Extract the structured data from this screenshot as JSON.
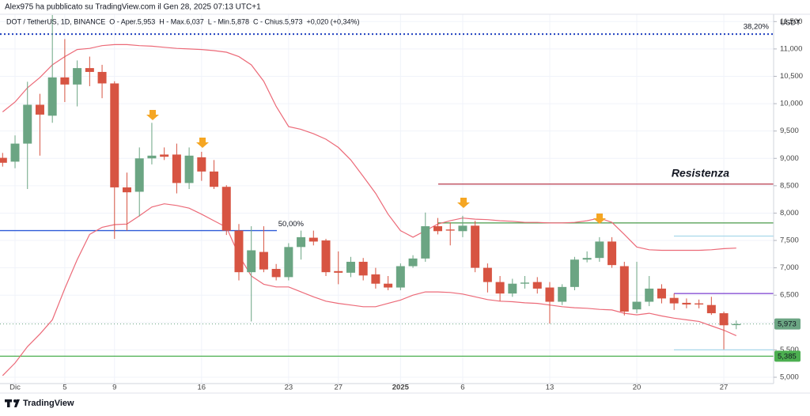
{
  "header": {
    "author_line": "Alex975 ha pubblicato su TradingView.com il Gen 28, 2025 07:13 UTC+1",
    "legend_line": "DOT / TetherUS, 1D, BINANCE  O - Aper.5,953  H - Max.6,037  L - Min.5,878  C - Chius.5,973  +0,020 (+0,34%)"
  },
  "footer": {
    "brand": "TradingView"
  },
  "chart_data": {
    "type": "candlestick",
    "y_axis_unit": "USDT",
    "categories": [
      null,
      "Dic",
      null,
      null,
      null,
      "5",
      null,
      null,
      null,
      "9",
      null,
      null,
      null,
      null,
      null,
      null,
      "16",
      null,
      null,
      null,
      null,
      null,
      null,
      "23",
      null,
      null,
      null,
      "27",
      null,
      null,
      null,
      null,
      "2025",
      null,
      null,
      null,
      null,
      "6",
      null,
      null,
      null,
      null,
      null,
      null,
      "13",
      null,
      null,
      null,
      null,
      null,
      null,
      "20",
      null,
      null,
      null,
      null,
      null,
      null,
      "27",
      null
    ],
    "up_color": "#6ba583",
    "down_color": "#d75442",
    "open": [
      9010,
      8940,
      9270,
      9980,
      9780,
      10480,
      10350,
      10650,
      10580,
      10370,
      8470,
      8390,
      9000,
      9070,
      9070,
      8550,
      9020,
      8760,
      8480,
      7680,
      6920,
      7290,
      6980,
      6830,
      7380,
      7550,
      7500,
      6940,
      6910,
      7110,
      6880,
      6710,
      6640,
      7030,
      7170,
      7760,
      7700,
      7670,
      7770,
      7000,
      6740,
      6530,
      6710,
      6740,
      6640,
      6380,
      6650,
      7150,
      7180,
      7480,
      7030,
      6240,
      6380,
      6620,
      6450,
      6360,
      6350,
      6320,
      6170,
      5953
    ],
    "high": [
      9100,
      9420,
      10400,
      10180,
      11620,
      11180,
      10790,
      10860,
      10710,
      10410,
      8740,
      9200,
      9650,
      9200,
      9270,
      9200,
      9120,
      8970,
      8510,
      7800,
      7760,
      7760,
      7070,
      7450,
      7680,
      7680,
      7530,
      7300,
      7200,
      7180,
      7000,
      6850,
      7080,
      7230,
      8010,
      7910,
      7830,
      7950,
      7860,
      7080,
      6850,
      6800,
      6850,
      6830,
      6740,
      6700,
      7200,
      7300,
      7560,
      7560,
      7110,
      7110,
      6850,
      6700,
      6530,
      6440,
      6420,
      6470,
      6200,
      6037
    ],
    "low": [
      8850,
      8820,
      8440,
      9050,
      9650,
      10030,
      9950,
      10320,
      10100,
      7530,
      7680,
      7940,
      8890,
      8970,
      8360,
      8440,
      8590,
      8440,
      7600,
      6770,
      6020,
      6920,
      6770,
      6770,
      7150,
      7410,
      6850,
      6700,
      6830,
      6770,
      6620,
      6590,
      6590,
      7000,
      7110,
      7610,
      7410,
      7560,
      6920,
      6550,
      6390,
      6470,
      6620,
      6530,
      5980,
      6320,
      6590,
      7100,
      7110,
      7000,
      6130,
      6170,
      6300,
      6350,
      6230,
      6260,
      6260,
      6140,
      5510,
      5878
    ],
    "close": [
      8920,
      9270,
      9980,
      9800,
      10480,
      10350,
      10650,
      10580,
      10370,
      8470,
      8380,
      9000,
      9050,
      9030,
      8550,
      9050,
      8760,
      8480,
      7680,
      6920,
      7320,
      6970,
      6830,
      7380,
      7560,
      7480,
      6920,
      6910,
      7110,
      6860,
      6710,
      6640,
      7030,
      7170,
      7760,
      7670,
      7680,
      7770,
      7000,
      6740,
      6530,
      6710,
      6730,
      6620,
      6380,
      6650,
      7150,
      7180,
      7480,
      7050,
      6200,
      6380,
      6620,
      6440,
      6350,
      6330,
      6330,
      6170,
      5950,
      5973
    ],
    "bands": [
      {
        "color": "#ec6a78",
        "values": [
          9850,
          10030,
          10290,
          10480,
          10710,
          10860,
          10990,
          11010,
          11060,
          11080,
          11080,
          11060,
          11050,
          11030,
          11010,
          11000,
          10990,
          10970,
          10940,
          10860,
          10710,
          10410,
          9950,
          9580,
          9530,
          9450,
          9350,
          9200,
          8970,
          8670,
          8360,
          7980,
          7680,
          7560,
          7680,
          7800,
          7860,
          7910,
          7890,
          7880,
          7860,
          7850,
          7830,
          7830,
          7820,
          7820,
          7830,
          7860,
          7910,
          7830,
          7610,
          7380,
          7330,
          7320,
          7320,
          7320,
          7320,
          7330,
          7350,
          7360
        ]
      },
      {
        "color": "#ec6a78",
        "values": [
          5030,
          5260,
          5560,
          5790,
          6050,
          6620,
          7150,
          7610,
          7740,
          7790,
          7800,
          7950,
          8110,
          8170,
          8140,
          8090,
          7980,
          7860,
          7740,
          7230,
          6850,
          6700,
          6650,
          6650,
          6560,
          6470,
          6390,
          6350,
          6320,
          6290,
          6290,
          6350,
          6410,
          6500,
          6560,
          6560,
          6550,
          6520,
          6470,
          6420,
          6390,
          6380,
          6360,
          6350,
          6320,
          6290,
          6270,
          6260,
          6240,
          6230,
          6170,
          6140,
          6170,
          6120,
          6080,
          6050,
          6020,
          5940,
          5860,
          5760
        ]
      }
    ],
    "levels": [
      {
        "value": 11272,
        "color": "#1e3fbf",
        "style": "dotted",
        "label": "38,20%"
      },
      {
        "value": 7680,
        "color": "#2f5bd8",
        "style": "solid",
        "label": "50,00%"
      },
      {
        "value": 8530,
        "color": "#b8394c",
        "style": "solid",
        "label": "Resistenza"
      },
      {
        "value": 7820,
        "color": "#4a9a4a",
        "style": "solid"
      },
      {
        "value": 7580,
        "color": "#a8d8ea",
        "style": "solid"
      },
      {
        "value": 6530,
        "color": "#7b3fd0",
        "style": "solid"
      },
      {
        "value": 5500,
        "color": "#a8d8ea",
        "style": "solid"
      },
      {
        "value": 5385,
        "color": "#4caf50",
        "style": "solid",
        "label": "5,385"
      }
    ],
    "last_price": {
      "value": 5973,
      "label": "5,973",
      "color": "#6ba583"
    },
    "ylim": [
      5000,
      11750
    ],
    "yticks": [
      {
        "value": 5000,
        "label": "5,000"
      },
      {
        "value": 5500,
        "label": "5,500"
      },
      {
        "value": 6000,
        "label": "6,000"
      },
      {
        "value": 6500,
        "label": "6,500"
      },
      {
        "value": 7000,
        "label": "7,000"
      },
      {
        "value": 7500,
        "label": "7,500"
      },
      {
        "value": 8000,
        "label": "8,000"
      },
      {
        "value": 8500,
        "label": "8,500"
      },
      {
        "value": 9000,
        "label": "9,000"
      },
      {
        "value": 9500,
        "label": "9,500"
      },
      {
        "value": 10000,
        "label": "10,000"
      },
      {
        "value": 10500,
        "label": "10,500"
      },
      {
        "value": 11000,
        "label": "11,000"
      },
      {
        "value": 11500,
        "label": "11,500"
      }
    ],
    "grid": true
  }
}
